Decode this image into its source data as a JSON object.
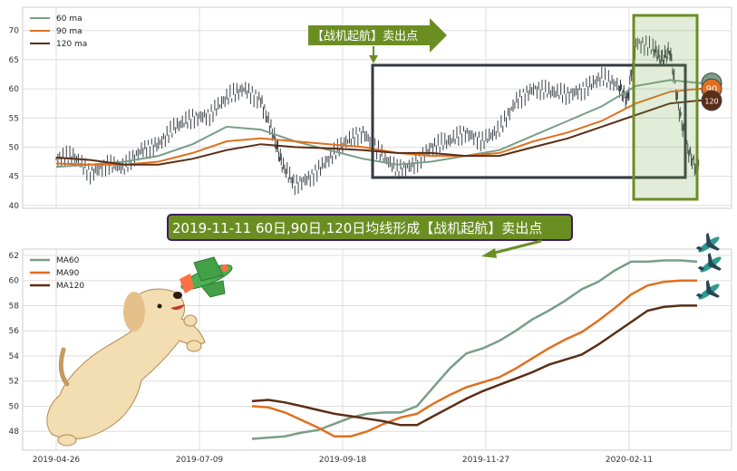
{
  "chart_data": [
    {
      "type": "line",
      "panel": "top",
      "ylim": [
        39.5,
        74
      ],
      "yticks": [
        40,
        45,
        50,
        55,
        60,
        65,
        70
      ],
      "grid": true,
      "legend_position": "top-left",
      "series": [
        {
          "name": "60 ma",
          "color": "#7a9e87",
          "x": [
            0,
            40,
            80,
            120,
            160,
            200,
            240,
            280,
            320,
            360,
            400,
            440,
            480,
            520,
            560,
            600,
            640,
            680,
            720,
            754
          ],
          "y": [
            46.6,
            47.0,
            47.5,
            48.5,
            50.5,
            53.5,
            53.0,
            51.0,
            49.5,
            48.0,
            47.0,
            47.5,
            48.5,
            49.5,
            52.0,
            54.5,
            57.0,
            60.5,
            61.5,
            61.0
          ]
        },
        {
          "name": "90 ma",
          "color": "#e07020",
          "x": [
            0,
            40,
            80,
            120,
            160,
            200,
            240,
            280,
            320,
            360,
            400,
            440,
            480,
            520,
            560,
            600,
            640,
            680,
            720,
            754
          ],
          "y": [
            47.2,
            47.0,
            47.0,
            47.5,
            49.0,
            51.0,
            51.5,
            51.0,
            50.5,
            50.0,
            49.0,
            48.5,
            48.5,
            49.0,
            51.0,
            52.5,
            54.5,
            57.5,
            59.5,
            60.0
          ]
        },
        {
          "name": "120 ma",
          "color": "#5a2e16",
          "x": [
            0,
            40,
            80,
            120,
            160,
            200,
            240,
            280,
            320,
            360,
            400,
            440,
            480,
            520,
            560,
            600,
            640,
            680,
            720,
            754
          ],
          "y": [
            48.2,
            47.8,
            47.0,
            47.0,
            48.0,
            49.5,
            50.5,
            50.0,
            49.8,
            49.5,
            49.0,
            49.0,
            48.5,
            48.5,
            50.0,
            51.5,
            53.5,
            55.5,
            57.5,
            58.0
          ]
        },
        {
          "name": "",
          "color": "#3a4048",
          "kind": "candles",
          "x": [
            0,
            20,
            40,
            60,
            80,
            100,
            120,
            140,
            160,
            180,
            200,
            220,
            240,
            255,
            265,
            280,
            300,
            320,
            340,
            360,
            380,
            400,
            420,
            440,
            460,
            480,
            500,
            520,
            540,
            560,
            580,
            600,
            620,
            640,
            660,
            670,
            680,
            700,
            710,
            720,
            730,
            740,
            750,
            754
          ],
          "y": [
            48,
            48.5,
            45.5,
            47,
            46.5,
            49.5,
            50.5,
            53.5,
            55,
            55.5,
            58.5,
            60,
            58,
            52,
            47,
            43.5,
            45,
            48,
            51,
            52.5,
            49,
            46,
            47,
            50,
            51,
            52.5,
            51,
            53,
            58,
            60,
            59.5,
            59,
            60,
            62,
            60.5,
            58,
            68,
            67,
            65,
            66.5,
            57,
            50,
            46.5,
            48
          ]
        }
      ],
      "markers": [
        {
          "label": "60",
          "value": 61.0,
          "color": "#7a9e87"
        },
        {
          "label": "90",
          "value": 60.0,
          "color": "#e07020"
        },
        {
          "label": "120",
          "value": 58.0,
          "color": "#5a2e16"
        }
      ],
      "annotation": "【战机起航】卖出点"
    },
    {
      "type": "line",
      "panel": "bottom",
      "ylim": [
        46.5,
        62.5
      ],
      "yticks": [
        48,
        50,
        52,
        54,
        56,
        58,
        60,
        62
      ],
      "grid": true,
      "legend_position": "top-left",
      "categories": [
        "2019-04-26",
        "2019-07-09",
        "2019-09-18",
        "2019-11-27",
        "2020-02-11"
      ],
      "series": [
        {
          "name": "MA60",
          "color": "#7a9e87",
          "x": [
            0,
            18,
            36,
            54,
            72,
            90,
            108,
            126,
            144,
            162,
            180,
            198,
            216,
            234,
            252,
            270,
            288,
            306,
            324,
            342,
            360,
            378,
            396,
            414,
            432,
            450,
            468,
            486
          ],
          "y": [
            47.4,
            47.5,
            47.6,
            47.9,
            48.1,
            48.6,
            49.1,
            49.4,
            49.5,
            49.5,
            50.0,
            51.5,
            53.0,
            54.2,
            54.6,
            55.2,
            56.0,
            56.9,
            57.6,
            58.4,
            59.3,
            59.9,
            60.8,
            61.5,
            61.5,
            61.6,
            61.6,
            61.5
          ]
        },
        {
          "name": "MA90",
          "color": "#e07020",
          "x": [
            0,
            18,
            36,
            54,
            72,
            90,
            108,
            126,
            144,
            162,
            180,
            198,
            216,
            234,
            252,
            270,
            288,
            306,
            324,
            342,
            360,
            378,
            396,
            414,
            432,
            450,
            468,
            486
          ],
          "y": [
            50.0,
            49.9,
            49.5,
            48.9,
            48.3,
            47.6,
            47.6,
            48.0,
            48.6,
            49.1,
            49.4,
            50.2,
            50.9,
            51.5,
            51.9,
            52.3,
            53.0,
            53.8,
            54.6,
            55.3,
            55.9,
            56.8,
            57.8,
            58.9,
            59.6,
            59.9,
            60.0,
            60.0
          ]
        },
        {
          "name": "MA120",
          "color": "#5a2e16",
          "x": [
            0,
            18,
            36,
            54,
            72,
            90,
            108,
            126,
            144,
            162,
            180,
            198,
            216,
            234,
            252,
            270,
            288,
            306,
            324,
            342,
            360,
            378,
            396,
            414,
            432,
            450,
            468,
            486
          ],
          "y": [
            50.4,
            50.5,
            50.3,
            50.0,
            49.7,
            49.4,
            49.2,
            49.0,
            48.8,
            48.5,
            48.5,
            49.2,
            49.9,
            50.6,
            51.2,
            51.7,
            52.2,
            52.7,
            53.3,
            53.7,
            54.1,
            54.9,
            55.8,
            56.7,
            57.6,
            57.9,
            58.0,
            58.0
          ]
        }
      ],
      "annotation": "2019-11-11 60日,90日,120日均线形成【战机起航】卖出点"
    }
  ]
}
